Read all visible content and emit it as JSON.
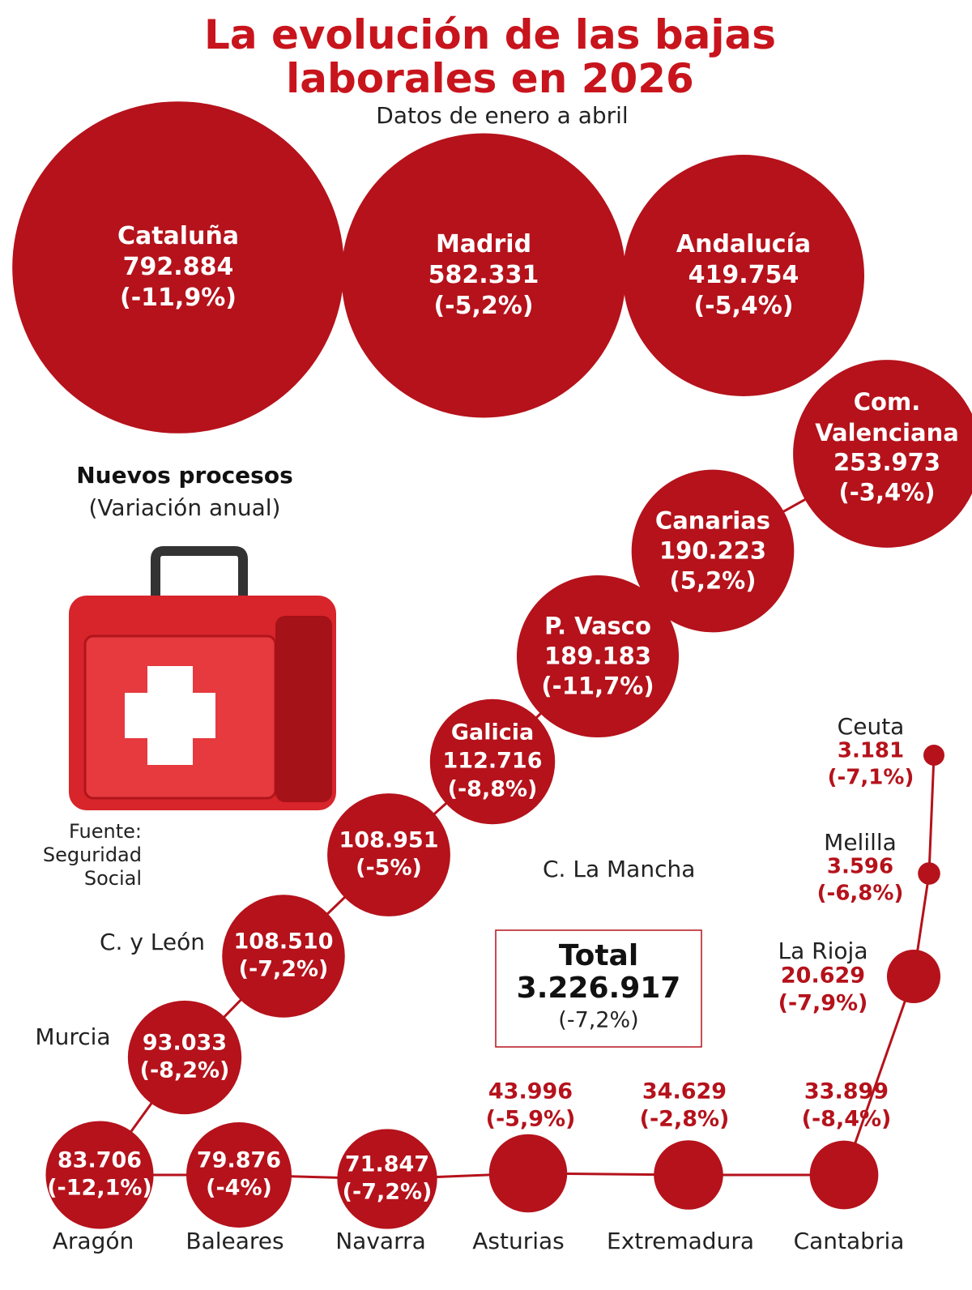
{
  "chart_data": {
    "type": "bubble",
    "title": "La evolución de las bajas laborales en 2026",
    "subtitle": "Datos de enero a abril",
    "legend_title": "Nuevos procesos",
    "legend_subtitle": "(Variación anual)",
    "source": "Fuente: Seguridad Social",
    "color": "#b5121b",
    "categories": [
      "Cataluña",
      "Madrid",
      "Andalucía",
      "Com. Valenciana",
      "Canarias",
      "P. Vasco",
      "Galicia",
      "C. La Mancha",
      "C. y León",
      "Murcia",
      "Aragón",
      "Baleares",
      "Navarra",
      "Asturias",
      "Extremadura",
      "Cantabria",
      "La Rioja",
      "Melilla",
      "Ceuta"
    ],
    "values": [
      792884,
      582331,
      419754,
      253973,
      190223,
      189183,
      112716,
      108951,
      108510,
      93033,
      83706,
      79876,
      71847,
      43996,
      34629,
      33899,
      20629,
      3596,
      3181
    ],
    "value_labels": [
      "792.884",
      "582.331",
      "419.754",
      "253.973",
      "190.223",
      "189.183",
      "112.716",
      "108.951",
      "108.510",
      "93.033",
      "83.706",
      "79.876",
      "71.847",
      "43.996",
      "34.629",
      "33.899",
      "20.629",
      "3.596",
      "3.181"
    ],
    "changes": [
      -11.9,
      -5.2,
      -5.4,
      -3.4,
      5.2,
      -11.7,
      -8.8,
      -5,
      -7.2,
      -8.2,
      -12.1,
      -4,
      -7.2,
      -5.9,
      -2.8,
      -8.4,
      -7.9,
      -6.8,
      -7.1
    ],
    "change_labels": [
      "(-11,9%)",
      "(-5,2%)",
      "(-5,4%)",
      "(-3,4%)",
      "(5,2%)",
      "(-11,7%)",
      "(-8,8%)",
      "(-5%)",
      "(-7,2%)",
      "(-8,2%)",
      "(-12,1%)",
      "(-4%)",
      "(-7,2%)",
      "(-5,9%)",
      "(-2,8%)",
      "(-8,4%)",
      "(-7,9%)",
      "(-6,8%)",
      "(-7,1%)"
    ],
    "total": {
      "label": "Total",
      "value": 3226917,
      "value_label": "3.226.917",
      "change": -7.2,
      "change_label": "(-7,2%)"
    }
  }
}
